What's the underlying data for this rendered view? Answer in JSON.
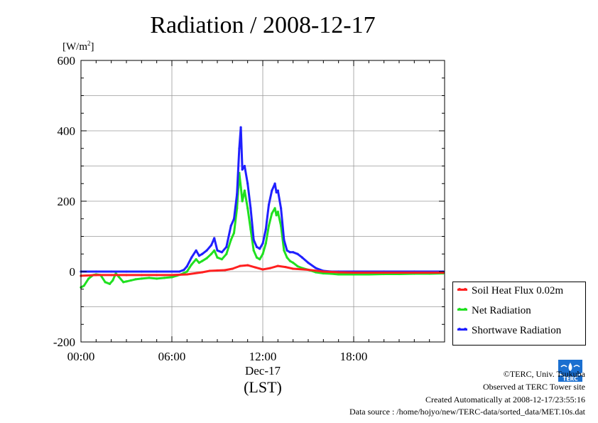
{
  "chart_data": {
    "type": "line",
    "title": "Radiation / 2008-12-17",
    "ylabel_unit": "[W/m",
    "ylabel_sup": "2",
    "ylabel_close": "]",
    "xlabel_date": "Dec-17",
    "xlabel_tz": "(LST)",
    "ylim": [
      -200,
      600
    ],
    "xlim": [
      0,
      24
    ],
    "yticks": [
      -200,
      0,
      200,
      400,
      600
    ],
    "ytick_labels": [
      "-200",
      "0",
      "200",
      "400",
      "600"
    ],
    "xticks": [
      0,
      6,
      12,
      18
    ],
    "xtick_labels": [
      "00:00",
      "06:00",
      "12:00",
      "18:00"
    ],
    "grid": true,
    "legend_position": "right-bottom outside",
    "series": [
      {
        "name": "Soil Heat Flux 0.02m",
        "color": "#ff2020",
        "x": [
          0,
          1,
          2,
          3,
          4,
          5,
          6,
          7,
          8,
          8.5,
          9,
          9.5,
          10,
          10.5,
          11,
          11.5,
          12,
          12.5,
          13,
          13.5,
          14,
          15,
          16,
          17,
          18,
          20,
          22,
          23.9
        ],
        "y": [
          -12,
          -10,
          -10,
          -10,
          -10,
          -10,
          -10,
          -8,
          -2,
          2,
          3,
          4,
          8,
          16,
          18,
          12,
          6,
          10,
          16,
          13,
          8,
          5,
          0,
          -2,
          -3,
          -3,
          -3,
          -3
        ]
      },
      {
        "name": "Net Radiation",
        "color": "#20e020",
        "x": [
          0,
          0.2,
          0.5,
          0.8,
          1.0,
          1.3,
          1.6,
          1.9,
          2.1,
          2.3,
          2.5,
          2.8,
          3.0,
          3.3,
          3.6,
          4.0,
          4.5,
          5.0,
          5.5,
          6.0,
          6.3,
          6.6,
          7.0,
          7.3,
          7.6,
          7.8,
          8.0,
          8.3,
          8.6,
          8.8,
          9.0,
          9.3,
          9.6,
          9.9,
          10.1,
          10.3,
          10.45,
          10.55,
          10.65,
          10.8,
          11.0,
          11.2,
          11.4,
          11.6,
          11.8,
          12.0,
          12.2,
          12.4,
          12.6,
          12.8,
          12.9,
          13.0,
          13.2,
          13.4,
          13.6,
          13.8,
          14.0,
          14.3,
          14.6,
          15.0,
          15.5,
          16.0,
          16.5,
          17.0,
          18.0,
          19.0,
          20.0,
          21.0,
          22.0,
          23.0,
          23.9
        ],
        "y": [
          -45,
          -40,
          -20,
          -10,
          -8,
          -10,
          -30,
          -35,
          -25,
          -5,
          -15,
          -30,
          -28,
          -25,
          -22,
          -20,
          -18,
          -20,
          -18,
          -16,
          -12,
          -8,
          0,
          20,
          35,
          25,
          30,
          38,
          50,
          60,
          40,
          35,
          50,
          90,
          110,
          180,
          280,
          240,
          200,
          230,
          180,
          120,
          60,
          40,
          35,
          50,
          80,
          130,
          165,
          180,
          160,
          170,
          130,
          60,
          40,
          30,
          25,
          15,
          10,
          5,
          -2,
          -5,
          -6,
          -8,
          -8,
          -8,
          -7,
          -7,
          -6,
          -6,
          -5
        ]
      },
      {
        "name": "Shortwave Radiation",
        "color": "#2020ff",
        "x": [
          0,
          1,
          2,
          3,
          4,
          5,
          6,
          6.5,
          6.8,
          7.0,
          7.3,
          7.6,
          7.8,
          8.0,
          8.3,
          8.6,
          8.8,
          9.0,
          9.3,
          9.6,
          9.9,
          10.1,
          10.3,
          10.45,
          10.55,
          10.65,
          10.8,
          11.0,
          11.2,
          11.4,
          11.6,
          11.8,
          12.0,
          12.2,
          12.4,
          12.6,
          12.8,
          12.9,
          13.0,
          13.2,
          13.4,
          13.6,
          13.8,
          14.0,
          14.3,
          14.6,
          15.0,
          15.5,
          16.0,
          16.5,
          17.0,
          18.0,
          20.0,
          22.0,
          23.9
        ],
        "y": [
          0,
          0,
          0,
          0,
          0,
          0,
          0,
          0,
          5,
          15,
          40,
          60,
          45,
          50,
          60,
          75,
          95,
          60,
          55,
          70,
          130,
          150,
          220,
          350,
          410,
          290,
          300,
          250,
          180,
          90,
          70,
          65,
          80,
          120,
          190,
          230,
          250,
          225,
          230,
          180,
          90,
          60,
          55,
          55,
          50,
          40,
          25,
          10,
          2,
          0,
          0,
          0,
          0,
          0,
          0
        ]
      }
    ]
  },
  "footer": {
    "copyright": "©TERC, Univ. Tsukuba",
    "observed": "Observed at TERC Tower site",
    "created": "Created Automatically at 2008-12-17/23:55:16",
    "source": "Data source : /home/hojyo/new/TERC-data/sorted_data/MET.10s.dat"
  },
  "logo": {
    "text": "TERC",
    "color": "#1a6fd0"
  }
}
